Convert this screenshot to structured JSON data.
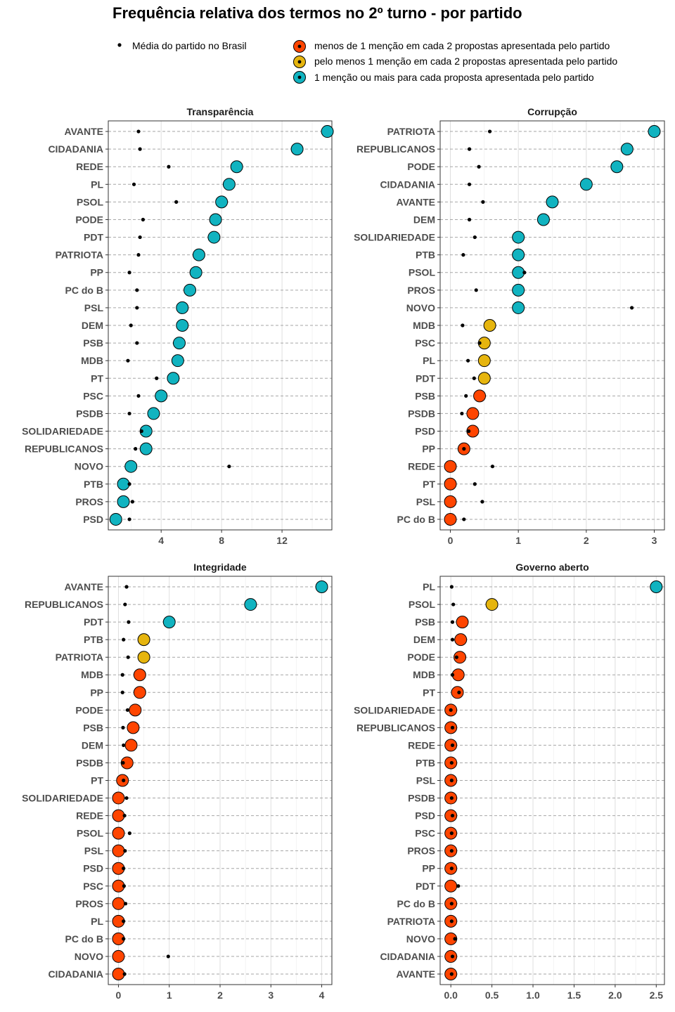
{
  "title": "Frequência relativa dos termos no 2º turno - por partido",
  "legend": {
    "mean_label": "Média do partido no Brasil",
    "categories": [
      {
        "label": "menos de 1 menção em cada 2 propostas apresentada pelo partido",
        "color": "#FF4500"
      },
      {
        "label": "pelo menos 1 menção em cada 2 propostas apresentada pelo partido",
        "color": "#E6B50E"
      },
      {
        "label": "1 menção ou mais para cada proposta apresentada pelo partido",
        "color": "#11B3C0"
      }
    ]
  },
  "chart_data": [
    {
      "type": "scatter",
      "title": "Transparência",
      "xlim": [
        0.5,
        15.3
      ],
      "xticks": [
        4,
        8,
        12
      ],
      "xtick_labels": [
        "4",
        "8",
        "12"
      ],
      "minor_gridlines": [
        2,
        6,
        10,
        14
      ],
      "parties": [
        "AVANTE",
        "CIDADANIA",
        "REDE",
        "PL",
        "PSOL",
        "PODE",
        "PDT",
        "PATRIOTA",
        "PP",
        "PC do B",
        "PSL",
        "DEM",
        "PSB",
        "MDB",
        "PT",
        "PSC",
        "PSDB",
        "SOLIDARIEDADE",
        "REPUBLICANOS",
        "NOVO",
        "PTB",
        "PROS",
        "PSD"
      ],
      "values": [
        15.0,
        13.0,
        9.0,
        8.5,
        8.0,
        7.6,
        7.5,
        6.5,
        6.3,
        5.9,
        5.4,
        5.4,
        5.2,
        5.1,
        4.8,
        4.0,
        3.5,
        3.0,
        3.0,
        2.0,
        1.5,
        1.5,
        1.0
      ],
      "means": [
        2.5,
        2.6,
        4.5,
        2.2,
        5.0,
        2.8,
        2.6,
        2.5,
        1.9,
        2.4,
        2.4,
        2.0,
        2.4,
        1.8,
        3.7,
        2.5,
        1.9,
        2.7,
        2.3,
        8.5,
        1.9,
        2.1,
        1.9
      ]
    },
    {
      "type": "scatter",
      "title": "Corrupção",
      "xlim": [
        -0.15,
        3.15
      ],
      "xticks": [
        0,
        1,
        2,
        3
      ],
      "xtick_labels": [
        "0",
        "1",
        "2",
        "3"
      ],
      "minor_gridlines": [
        0.5,
        1.5,
        2.5
      ],
      "parties": [
        "PATRIOTA",
        "REPUBLICANOS",
        "PODE",
        "CIDADANIA",
        "AVANTE",
        "DEM",
        "SOLIDARIEDADE",
        "PTB",
        "PSOL",
        "PROS",
        "NOVO",
        "MDB",
        "PSC",
        "PL",
        "PDT",
        "PSB",
        "PSDB",
        "PSD",
        "PP",
        "REDE",
        "PT",
        "PSL",
        "PC do B"
      ],
      "values": [
        3.0,
        2.6,
        2.45,
        2.0,
        1.5,
        1.37,
        1.0,
        1.0,
        1.0,
        1.0,
        1.0,
        0.58,
        0.5,
        0.5,
        0.5,
        0.43,
        0.33,
        0.33,
        0.2,
        0.0,
        0.0,
        0.0,
        0.0
      ],
      "means": [
        0.58,
        0.28,
        0.42,
        0.28,
        0.48,
        0.28,
        0.36,
        0.19,
        1.09,
        0.38,
        2.67,
        0.18,
        0.43,
        0.26,
        0.35,
        0.23,
        0.17,
        0.27,
        0.2,
        0.62,
        0.36,
        0.47,
        0.2
      ]
    },
    {
      "type": "scatter",
      "title": "Integridade",
      "xlim": [
        -0.2,
        4.2
      ],
      "xticks": [
        0,
        1,
        2,
        3,
        4
      ],
      "xtick_labels": [
        "0",
        "1",
        "2",
        "3",
        "4"
      ],
      "minor_gridlines": [
        0.5,
        1.5,
        2.5,
        3.5
      ],
      "parties": [
        "AVANTE",
        "REPUBLICANOS",
        "PDT",
        "PTB",
        "PATRIOTA",
        "MDB",
        "PP",
        "PODE",
        "PSB",
        "DEM",
        "PSDB",
        "PT",
        "SOLIDARIEDADE",
        "REDE",
        "PSOL",
        "PSL",
        "PSD",
        "PSC",
        "PROS",
        "PL",
        "PC do B",
        "NOVO",
        "CIDADANIA"
      ],
      "values": [
        4.0,
        2.6,
        1.0,
        0.5,
        0.5,
        0.42,
        0.42,
        0.33,
        0.29,
        0.25,
        0.17,
        0.08,
        0.0,
        0.0,
        0.0,
        0.0,
        0.0,
        0.0,
        0.0,
        0.0,
        0.0,
        0.0,
        0.0
      ],
      "means": [
        0.16,
        0.13,
        0.2,
        0.1,
        0.19,
        0.08,
        0.08,
        0.18,
        0.09,
        0.1,
        0.09,
        0.1,
        0.16,
        0.12,
        0.22,
        0.13,
        0.1,
        0.11,
        0.14,
        0.1,
        0.1,
        0.98,
        0.12
      ]
    },
    {
      "type": "scatter",
      "title": "Governo aberto",
      "xlim": [
        -0.13,
        2.6
      ],
      "xticks": [
        0.0,
        0.5,
        1.0,
        1.5,
        2.0,
        2.5
      ],
      "xtick_labels": [
        "0.0",
        "0.5",
        "1.0",
        "1.5",
        "2.0",
        "2.5"
      ],
      "minor_gridlines": [
        0.25,
        0.75,
        1.25,
        1.75,
        2.25
      ],
      "parties": [
        "PL",
        "PSOL",
        "PSB",
        "DEM",
        "PODE",
        "MDB",
        "PT",
        "SOLIDARIEDADE",
        "REPUBLICANOS",
        "REDE",
        "PTB",
        "PSL",
        "PSDB",
        "PSD",
        "PSC",
        "PROS",
        "PP",
        "PDT",
        "PC do B",
        "PATRIOTA",
        "NOVO",
        "CIDADANIA",
        "AVANTE"
      ],
      "values": [
        2.5,
        0.5,
        0.14,
        0.12,
        0.11,
        0.09,
        0.08,
        0.0,
        0.0,
        0.0,
        0.0,
        0.0,
        0.0,
        0.0,
        0.0,
        0.0,
        0.0,
        0.0,
        0.0,
        0.0,
        0.0,
        0.0,
        0.0
      ],
      "means": [
        0.01,
        0.03,
        0.02,
        0.02,
        0.07,
        0.02,
        0.1,
        0.0,
        0.02,
        0.02,
        0.01,
        0.01,
        0.01,
        0.02,
        0.01,
        0.01,
        0.01,
        0.09,
        0.01,
        0.01,
        0.05,
        0.02,
        0.01
      ]
    }
  ]
}
